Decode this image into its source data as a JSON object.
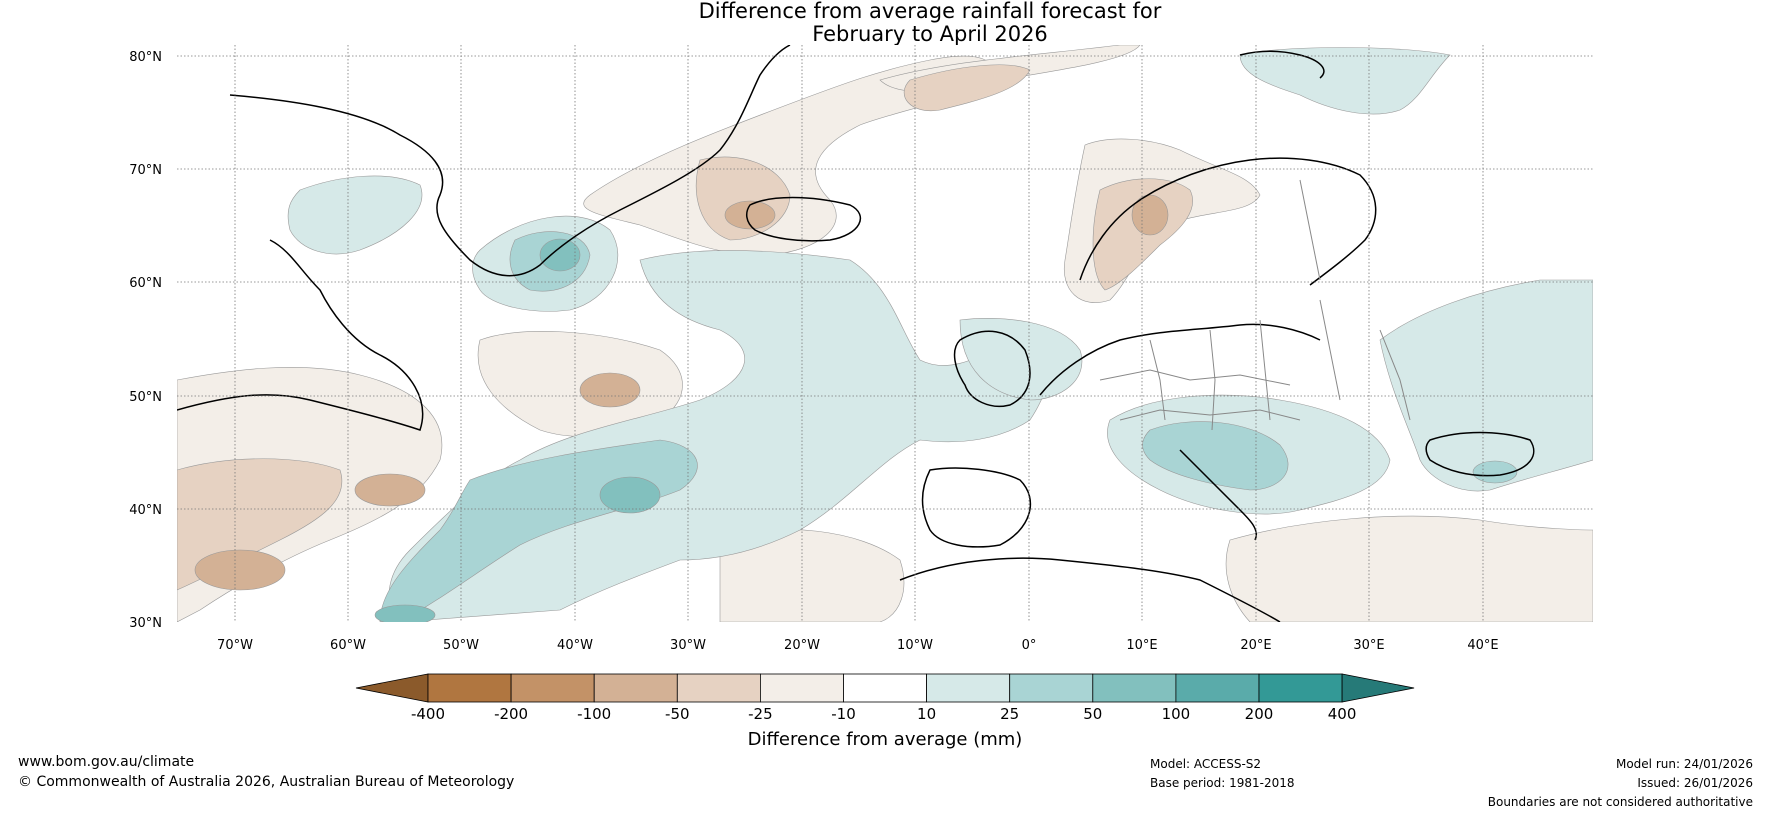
{
  "title_line1": "Difference from average rainfall forecast for",
  "title_line2": "February to April 2026",
  "lat_labels": [
    "80°N",
    "70°N",
    "60°N",
    "50°N",
    "40°N",
    "30°N"
  ],
  "lon_labels": [
    "70°W",
    "60°W",
    "50°W",
    "40°W",
    "30°W",
    "20°W",
    "10°W",
    "0°",
    "10°E",
    "20°E",
    "30°E",
    "40°E"
  ],
  "legend": {
    "tick_labels": [
      "-400",
      "-200",
      "-100",
      "-50",
      "-25",
      "-10",
      "10",
      "25",
      "50",
      "100",
      "200",
      "400"
    ],
    "label": "Difference from average (mm)",
    "colors": [
      "#8b5a2b",
      "#b07640",
      "#c39267",
      "#d3b195",
      "#e6d2c2",
      "#f3eee8",
      "#ffffff",
      "#d6e9e8",
      "#a9d4d4",
      "#82c0be",
      "#5aabaa",
      "#339996",
      "#267a78"
    ]
  },
  "footer": {
    "website": "www.bom.gov.au/climate",
    "copyright": "© Commonwealth of Australia 2026, Australian Bureau of Meteorology",
    "model": "Model: ACCESS-S2",
    "base_period": "Base period: 1981-2018",
    "model_run": "Model run: 24/01/2026",
    "issued": "Issued: 26/01/2026",
    "disclaimer": "Boundaries are not considered authoritative"
  }
}
